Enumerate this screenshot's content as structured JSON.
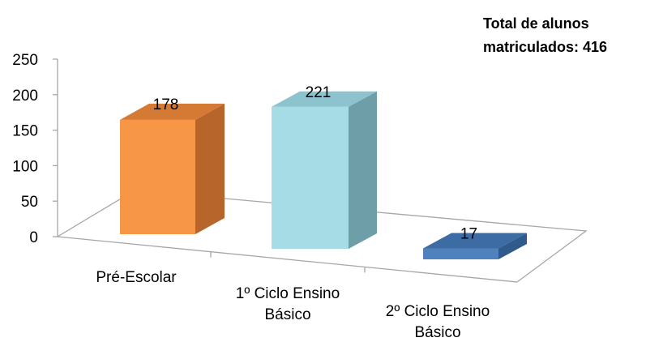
{
  "chart_data": {
    "type": "bar",
    "style": "3d-column",
    "categories": [
      [
        "Pré-Escolar"
      ],
      [
        "1º Ciclo Ensino",
        "Básico"
      ],
      [
        "2º Ciclo Ensino",
        "Básico"
      ]
    ],
    "values": [
      178,
      221,
      17
    ],
    "data_labels": [
      "178",
      "221",
      "17"
    ],
    "ylim": [
      0,
      250
    ],
    "yticks": [
      0,
      50,
      100,
      150,
      200,
      250
    ],
    "grid": false,
    "colors": {
      "bars": [
        {
          "front": "#F79646",
          "side": "#B7652B",
          "top": "#D47A34"
        },
        {
          "front": "#A6DCE6",
          "side": "#6E9EA8",
          "top": "#8CC3CE"
        },
        {
          "front": "#4F81BD",
          "side": "#2F5A8C",
          "top": "#3D6BA3"
        }
      ],
      "axis": "#A6A6A6"
    }
  },
  "note": {
    "line1": "Total de alunos",
    "line2": "matriculados: 416"
  }
}
